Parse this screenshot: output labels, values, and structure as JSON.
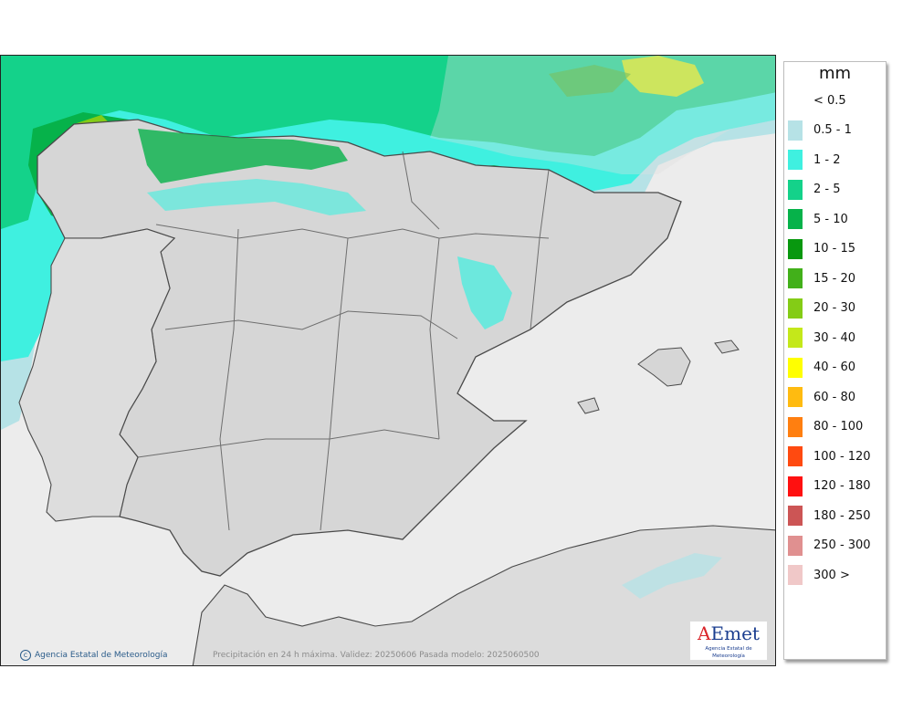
{
  "legend": {
    "unit": "mm",
    "items": [
      {
        "label": "< 0.5",
        "color": "#ffffff"
      },
      {
        "label": "0.5 - 1",
        "color": "#b6e2e6"
      },
      {
        "label": "1 - 2",
        "color": "#3ff0e0"
      },
      {
        "label": "2 - 5",
        "color": "#14d28a"
      },
      {
        "label": "5 - 10",
        "color": "#06b24a"
      },
      {
        "label": "10 - 15",
        "color": "#08980f"
      },
      {
        "label": "15 - 20",
        "color": "#42b01a"
      },
      {
        "label": "20 - 30",
        "color": "#84cc16"
      },
      {
        "label": "30 - 40",
        "color": "#c4e81a"
      },
      {
        "label": "40 - 60",
        "color": "#ffff00"
      },
      {
        "label": "60 - 80",
        "color": "#ffbb10"
      },
      {
        "label": "80 - 100",
        "color": "#ff7f10"
      },
      {
        "label": "100 - 120",
        "color": "#ff4a10"
      },
      {
        "label": "120 - 180",
        "color": "#ff1010"
      },
      {
        "label": "180 - 250",
        "color": "#cc5555"
      },
      {
        "label": "250 - 300",
        "color": "#e09090"
      },
      {
        "label": "300 >",
        "color": "#f0c8c8"
      }
    ]
  },
  "footer": {
    "copyright": "Agencia Estatal de Meteorología",
    "caption": "Precipitación en 24 h máxima. Validez: 20250606 Pasada modelo: 2025060500"
  },
  "logo": {
    "prefix": "A",
    "rest": "Emet",
    "subtitle": "Agencia Estatal de Meteorología"
  },
  "colors": {
    "sea": "#e9e9e9",
    "land": "#d8d8d8",
    "borders": "#333333"
  }
}
